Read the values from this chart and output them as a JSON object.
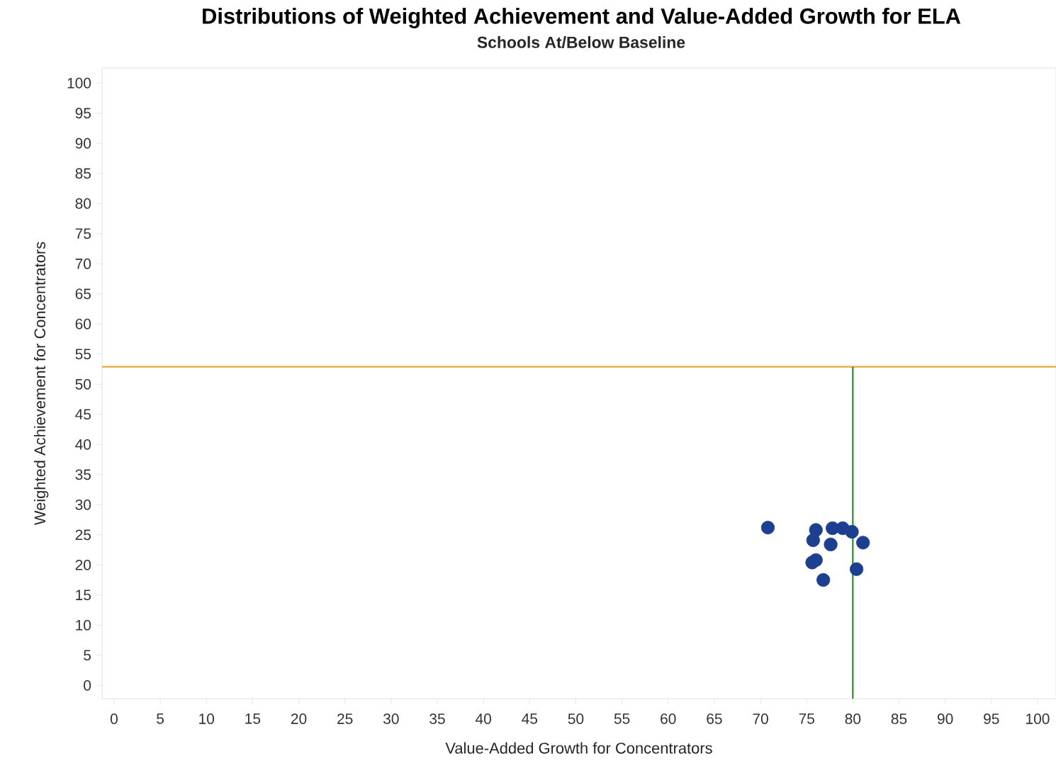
{
  "chart_data": {
    "type": "scatter",
    "title": "Distributions of Weighted Achievement and Value-Added Growth for ELA",
    "subtitle": "Schools At/Below Baseline",
    "xlabel": "Value-Added Growth for Concentrators",
    "ylabel": "Weighted Achievement for Concentrators",
    "x": [
      70.8,
      76.0,
      75.7,
      77.8,
      78.9,
      79.9,
      77.6,
      81.1,
      75.6,
      76.0,
      80.4,
      76.8
    ],
    "values": [
      26.2,
      25.8,
      24.1,
      26.1,
      26.1,
      25.5,
      23.4,
      23.7,
      20.4,
      20.8,
      19.3,
      17.5
    ],
    "color": "#1c3f8f",
    "marker": "circle",
    "xlim": [
      -1.3,
      102
    ],
    "ylim": [
      -2.2,
      102.5
    ],
    "xticks": [
      0,
      5,
      10,
      15,
      20,
      25,
      30,
      35,
      40,
      45,
      50,
      55,
      60,
      65,
      70,
      75,
      80,
      85,
      90,
      95,
      100
    ],
    "yticks": [
      0,
      5,
      10,
      15,
      20,
      25,
      30,
      35,
      40,
      45,
      50,
      55,
      60,
      65,
      70,
      75,
      80,
      85,
      90,
      95,
      100
    ],
    "ref_lines": [
      {
        "axis": "y",
        "value": 52.9,
        "color": "#e8a93a"
      },
      {
        "axis": "x",
        "value": 80,
        "color": "#2e8b2e"
      }
    ],
    "grid": false
  }
}
